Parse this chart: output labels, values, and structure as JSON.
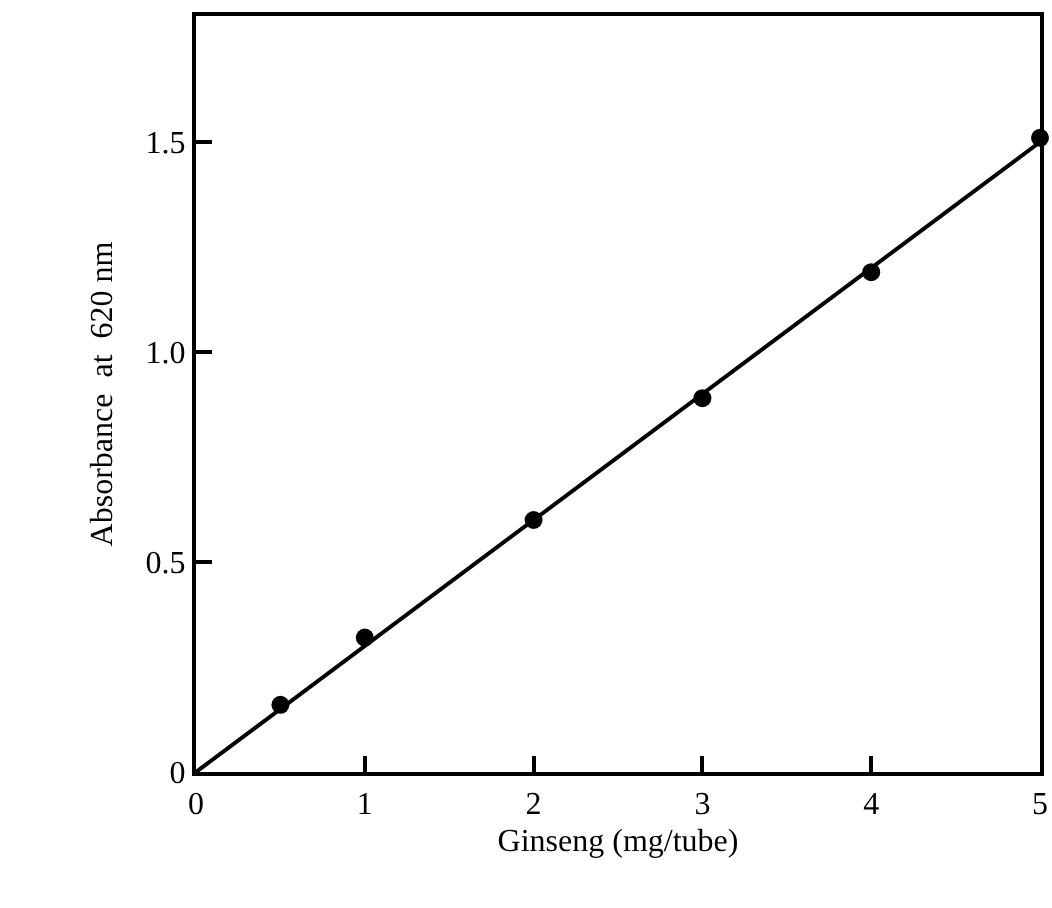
{
  "chart_data": {
    "type": "scatter",
    "xlabel": "Ginseng (mg/tube)",
    "ylabel": "Absorbance  at  620 nm",
    "xlim": [
      0,
      5
    ],
    "ylim": [
      0,
      1.8
    ],
    "xticks": [
      0,
      1,
      2,
      3,
      4,
      5
    ],
    "yticks": [
      0,
      0.5,
      {
        "value": 1,
        "label": "1.0"
      },
      1.5
    ],
    "grid": false,
    "marker": "circle",
    "series": [
      {
        "color": "#000000",
        "x": [
          0.5,
          1,
          2,
          3,
          4,
          5
        ],
        "values": [
          0.16,
          0.32,
          0.6,
          0.89,
          1.19,
          1.51
        ]
      },
      {
        "type": "line",
        "color": "#000000",
        "marker": "none",
        "line_style": "solid",
        "x": [
          0,
          5
        ],
        "values": [
          0,
          1.5
        ]
      }
    ]
  }
}
